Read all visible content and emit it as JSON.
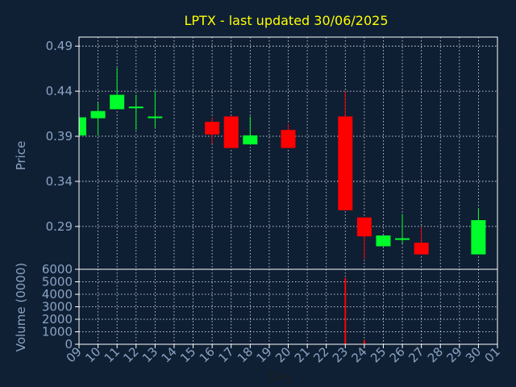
{
  "chart_data": [
    {
      "type": "candlestick",
      "title": "LPTX - last updated 30/06/2025",
      "ylabel": "Price",
      "ylim": [
        0.44,
        0.515
      ],
      "yticks": [
        0.29,
        0.34,
        0.39,
        0.44,
        0.49
      ],
      "ytick_labels": [
        "0.29",
        "0.34",
        "0.39",
        "0.44",
        "0.49"
      ],
      "ylim_actual": [
        0.2425,
        0.5
      ],
      "grid": true,
      "candles": [
        {
          "x": "09",
          "open": 0.391,
          "high": 0.411,
          "low": 0.391,
          "close": 0.411
        },
        {
          "x": "10",
          "open": 0.41,
          "high": 0.427,
          "low": 0.391,
          "close": 0.418
        },
        {
          "x": "11",
          "open": 0.42,
          "high": 0.466,
          "low": 0.42,
          "close": 0.436
        },
        {
          "x": "12",
          "open": 0.422,
          "high": 0.436,
          "low": 0.397,
          "close": 0.422
        },
        {
          "x": "13",
          "open": 0.41,
          "high": 0.44,
          "low": 0.4,
          "close": 0.411
        },
        {
          "x": "16",
          "open": 0.406,
          "high": 0.411,
          "low": 0.382,
          "close": 0.392
        },
        {
          "x": "17",
          "open": 0.412,
          "high": 0.412,
          "low": 0.377,
          "close": 0.377
        },
        {
          "x": "18",
          "open": 0.381,
          "high": 0.412,
          "low": 0.381,
          "close": 0.391
        },
        {
          "x": "20",
          "open": 0.397,
          "high": 0.404,
          "low": 0.377,
          "close": 0.377
        },
        {
          "x": "23",
          "open": 0.412,
          "high": 0.44,
          "low": 0.308,
          "close": 0.308
        },
        {
          "x": "24",
          "open": 0.3,
          "high": 0.3,
          "low": 0.254,
          "close": 0.279
        },
        {
          "x": "25",
          "open": 0.268,
          "high": 0.28,
          "low": 0.268,
          "close": 0.28
        },
        {
          "x": "26",
          "open": 0.276,
          "high": 0.304,
          "low": 0.271,
          "close": 0.276
        },
        {
          "x": "27",
          "open": 0.272,
          "high": 0.289,
          "low": 0.259,
          "close": 0.259
        },
        {
          "x": "30",
          "open": 0.259,
          "high": 0.31,
          "low": 0.259,
          "close": 0.297
        }
      ]
    },
    {
      "type": "bar",
      "ylabel": "Volume (0000)",
      "xlabel": "Day",
      "yticks": [
        0,
        1000,
        2000,
        3000,
        4000,
        5000,
        6000
      ],
      "ytick_labels": [
        "0",
        "1000",
        "2000",
        "3000",
        "4000",
        "5000",
        "6000"
      ],
      "ylim": [
        0,
        6000
      ],
      "x_tick_labels": [
        "09",
        "10",
        "11",
        "12",
        "13",
        "14",
        "15",
        "16",
        "17",
        "18",
        "19",
        "20",
        "21",
        "22",
        "23",
        "24",
        "25",
        "26",
        "27",
        "28",
        "29",
        "30",
        "01"
      ],
      "values": [
        {
          "x": "09",
          "value": 0
        },
        {
          "x": "10",
          "value": 0
        },
        {
          "x": "11",
          "value": 0
        },
        {
          "x": "12",
          "value": 0
        },
        {
          "x": "13",
          "value": 0
        },
        {
          "x": "16",
          "value": 0
        },
        {
          "x": "17",
          "value": 0
        },
        {
          "x": "18",
          "value": 0
        },
        {
          "x": "20",
          "value": 0
        },
        {
          "x": "23",
          "value": 5300
        },
        {
          "x": "24",
          "value": 350
        },
        {
          "x": "25",
          "value": 50
        },
        {
          "x": "26",
          "value": 0
        },
        {
          "x": "27",
          "value": 0
        },
        {
          "x": "30",
          "value": 0
        }
      ]
    }
  ],
  "colors": {
    "background": "#0f2035",
    "plot_background": "#0e1e33",
    "axis": "#ffffff",
    "grid": "#ffffff",
    "title": "#ffff00",
    "label": "#8aa3c2",
    "tick_label": "#8aa3c2",
    "up": "#00ff2a",
    "down": "#ff0000"
  }
}
